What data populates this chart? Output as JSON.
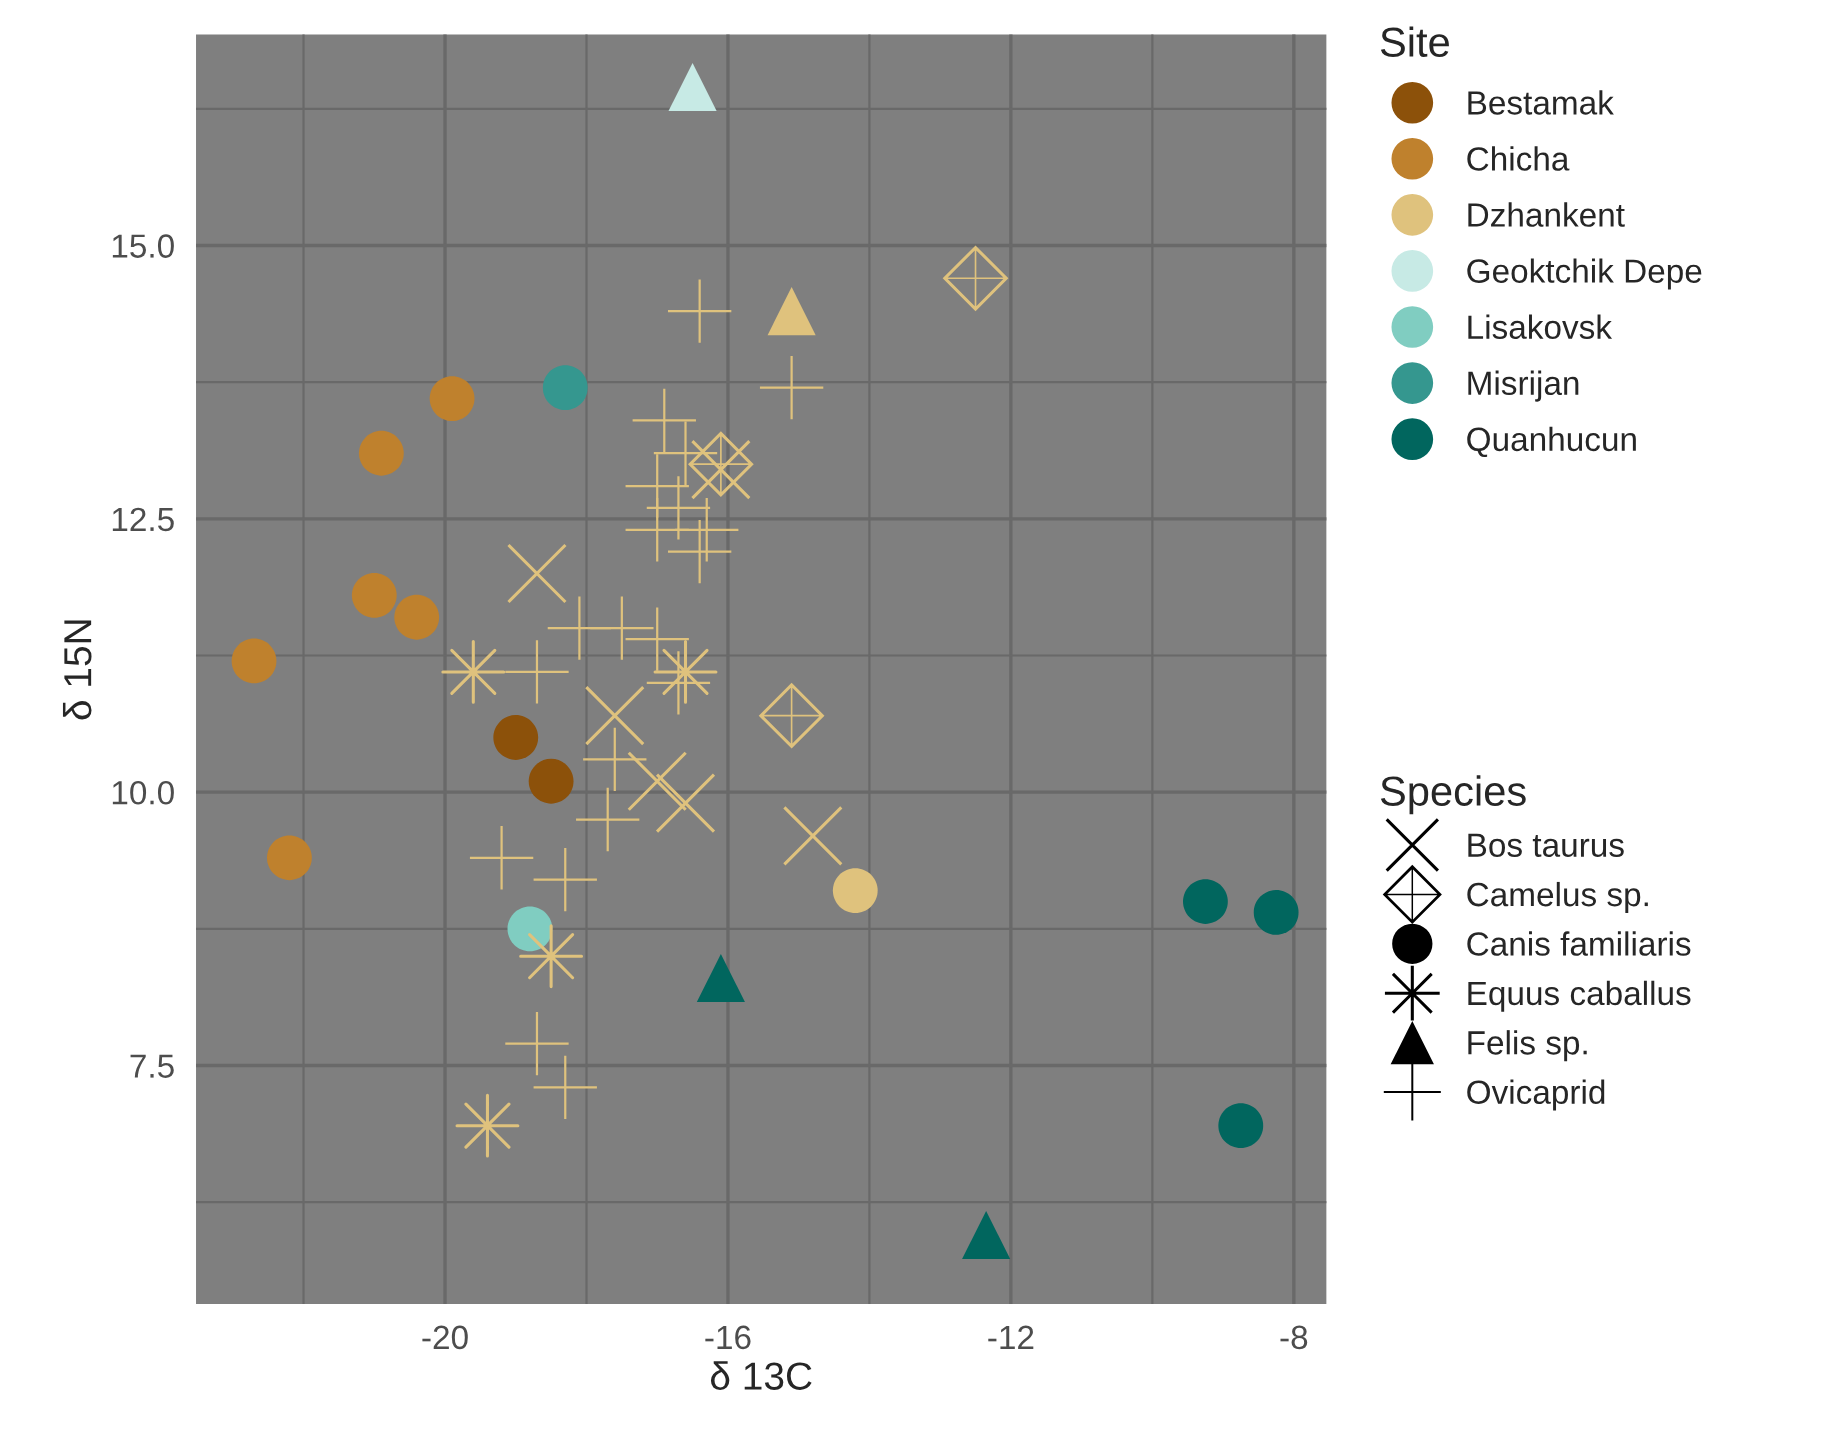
{
  "chart_data": {
    "type": "scatter",
    "xlabel": "δ 13C",
    "ylabel": "δ 15N",
    "xlim": [
      -23.52,
      -7.54
    ],
    "ylim": [
      5.32,
      16.93
    ],
    "xticks": [
      -20,
      -16,
      -12,
      -8
    ],
    "yticks": [
      7.5,
      {
        "value": 10,
        "label": "10.0"
      },
      12.5,
      {
        "value": 15,
        "label": "15.0"
      }
    ],
    "grid": true,
    "legend": "right",
    "legend_title": "Site",
    "annotations": [
      "Species"
    ],
    "series": [
      {
        "name": "Bestamak",
        "color": "#8c510a",
        "marker": "circle",
        "x": [
          -19.0,
          -18.5
        ],
        "values": [
          10.5,
          10.1
        ]
      },
      {
        "name": "Chicha",
        "color": "#bf812d",
        "marker": "circle",
        "x": [
          -19.9,
          -20.9,
          -21.0,
          -20.4,
          -22.7,
          -22.2
        ],
        "values": [
          13.6,
          13.1,
          11.8,
          11.6,
          11.2,
          9.4
        ]
      },
      {
        "name": "Dzhankent",
        "color": "#dfc27d",
        "marker": "circle",
        "x": [
          -14.2
        ],
        "values": [
          9.1
        ]
      },
      {
        "color": "#dfc27d",
        "marker": "triangle",
        "x": [
          -15.1
        ],
        "values": [
          14.4
        ]
      },
      {
        "color": "#dfc27d",
        "marker": "plus",
        "x": [
          -16.4,
          -15.1,
          -16.9,
          -16.6,
          -17.0,
          -16.7,
          -17.0,
          -16.4,
          -16.3,
          -18.1,
          -17.5,
          -17.0,
          -18.7,
          -16.7,
          -17.6,
          -17.7,
          -19.2,
          -18.3,
          -18.7,
          -18.3
        ],
        "values": [
          14.4,
          13.7,
          13.4,
          13.1,
          12.8,
          12.6,
          12.4,
          12.2,
          12.4,
          11.5,
          11.5,
          11.4,
          11.1,
          11.0,
          10.3,
          9.75,
          9.4,
          9.2,
          7.7,
          7.3
        ]
      },
      {
        "color": "#dfc27d",
        "marker": "cross",
        "x": [
          -18.7,
          -17.6,
          -17.0,
          -16.6,
          -14.8,
          -16.1
        ],
        "values": [
          12.0,
          10.7,
          10.1,
          9.9,
          9.6,
          12.95
        ]
      },
      {
        "color": "#dfc27d",
        "marker": "diamond",
        "x": [
          -12.5,
          -16.1,
          -15.1
        ],
        "values": [
          14.7,
          13.0,
          10.7
        ]
      },
      {
        "color": "#dfc27d",
        "marker": "star",
        "x": [
          -19.6,
          -16.6,
          -18.5,
          -19.4
        ],
        "values": [
          11.1,
          11.1,
          8.5,
          6.95
        ]
      },
      {
        "name": "Geoktchik Depe",
        "color": "#c7eae5",
        "marker": "triangle",
        "x": [
          -16.5
        ],
        "values": [
          16.45
        ]
      },
      {
        "name": "Lisakovsk",
        "color": "#80cdc1",
        "marker": "circle",
        "x": [
          -18.8
        ],
        "values": [
          8.75
        ]
      },
      {
        "name": "Misrijan",
        "color": "#35978f",
        "marker": "circle",
        "x": [
          -18.3
        ],
        "values": [
          13.7
        ]
      },
      {
        "name": "Quanhucun",
        "color": "#01665e",
        "marker": "circle",
        "x": [
          -9.25,
          -8.25,
          -8.75
        ],
        "values": [
          9.0,
          8.9,
          6.95
        ]
      },
      {
        "color": "#01665e",
        "marker": "triangle",
        "x": [
          -12.35,
          -16.1
        ],
        "values": [
          5.95,
          8.3
        ]
      },
      {
        "name": "Bos taurus",
        "color": "#000000",
        "marker": "cross"
      },
      {
        "name": "Camelus sp.",
        "color": "#000000",
        "marker": "diamond"
      },
      {
        "name": "Canis familiaris",
        "color": "#000000",
        "marker": "circle"
      },
      {
        "name": "Equus caballus",
        "color": "#000000",
        "marker": "star"
      },
      {
        "name": "Felis sp.",
        "color": "#000000",
        "marker": "triangle"
      },
      {
        "name": "Ovicaprid",
        "color": "#000000",
        "marker": "plus"
      }
    ]
  }
}
